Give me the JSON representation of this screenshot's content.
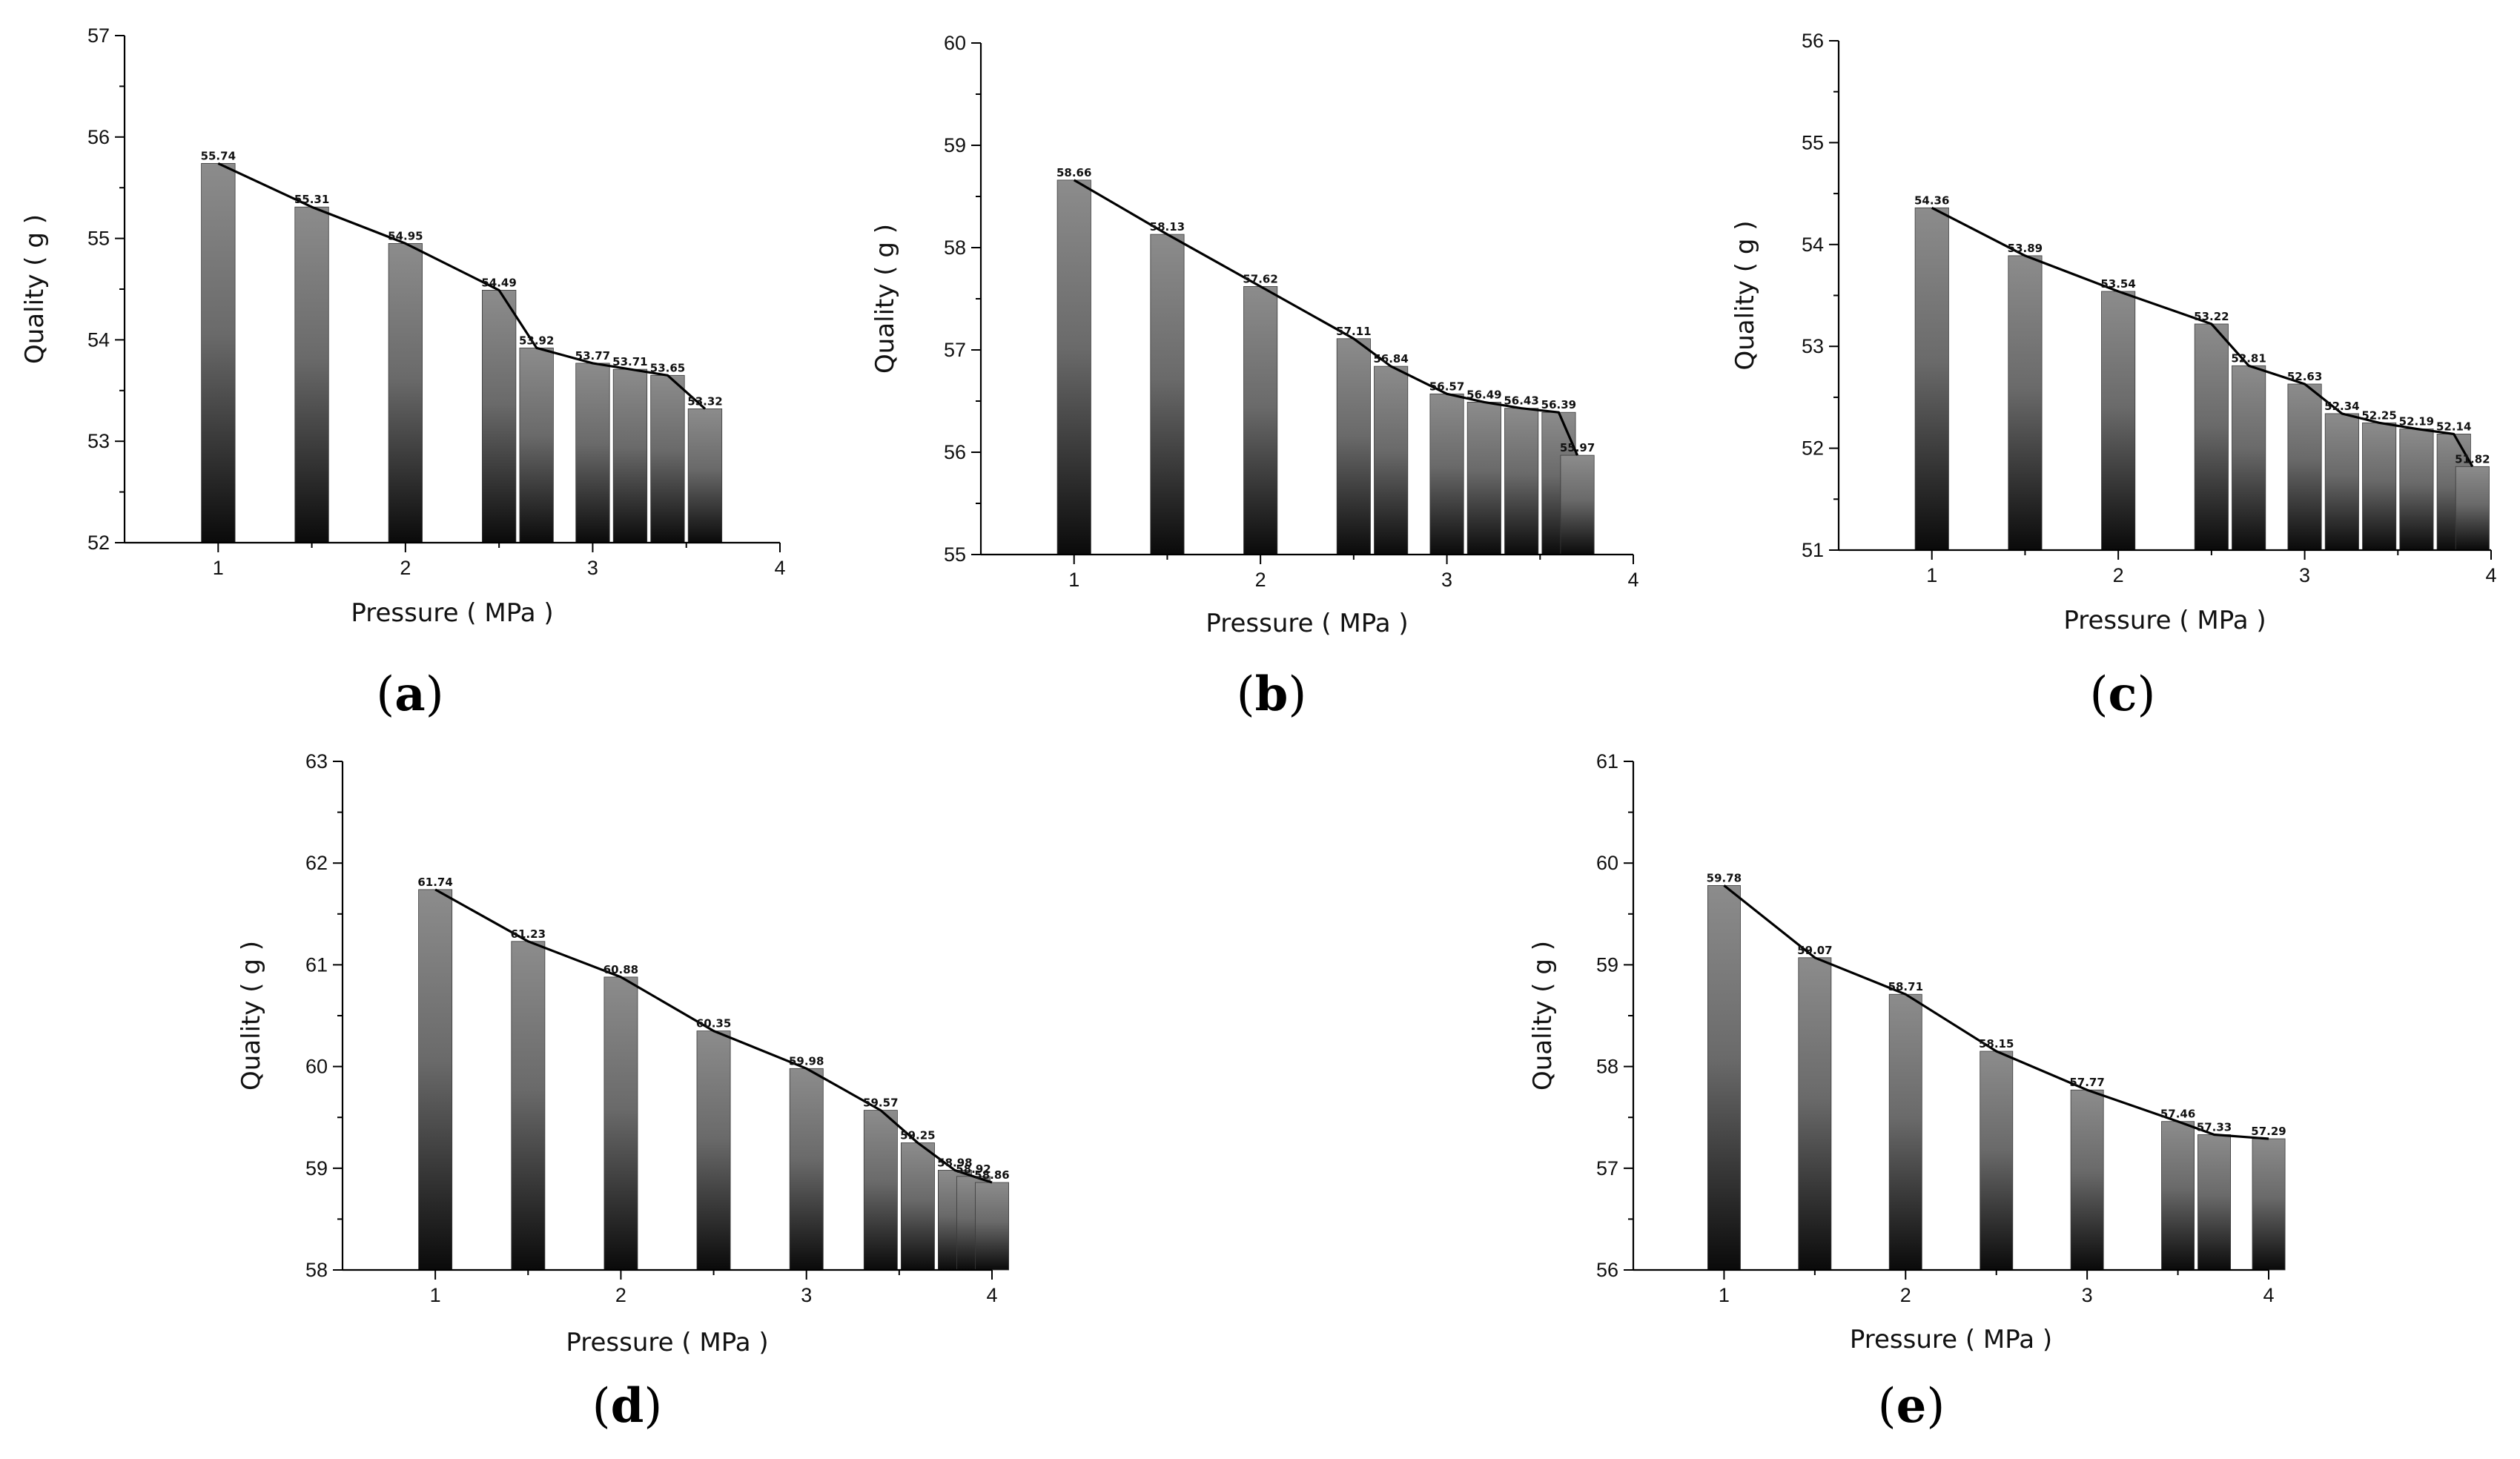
{
  "chart_data": [
    {
      "type": "bar",
      "panel_label": "(a)",
      "panel_letter": "a",
      "xlabel": "Pressure ( MPa )",
      "ylabel": "Quality ( g )",
      "xlim": [
        0.5,
        4
      ],
      "ylim": [
        52,
        57
      ],
      "xticks": [
        "1",
        "2",
        "3",
        "4"
      ],
      "yticks": [
        "52",
        "53",
        "54",
        "55",
        "56",
        "57"
      ],
      "x": [
        1,
        1.5,
        2,
        2.5,
        2.7,
        3,
        3.2,
        3.4,
        3.6
      ],
      "values": [
        55.74,
        55.31,
        54.95,
        54.49,
        53.92,
        53.77,
        53.71,
        53.65,
        53.32
      ],
      "labels": [
        "55.74",
        "55.31",
        "54.95",
        "54.49",
        "53.92",
        "53.77",
        "53.71",
        "53.65",
        "53.32"
      ]
    },
    {
      "type": "bar",
      "panel_label": "(b)",
      "panel_letter": "b",
      "xlabel": "Pressure ( MPa )",
      "ylabel": "Quality ( g )",
      "xlim": [
        0.5,
        4
      ],
      "ylim": [
        55,
        60
      ],
      "xticks": [
        "1",
        "2",
        "3",
        "4"
      ],
      "yticks": [
        "55",
        "56",
        "57",
        "58",
        "59",
        "60"
      ],
      "x": [
        1,
        1.5,
        2,
        2.5,
        2.7,
        3,
        3.2,
        3.4,
        3.6,
        3.7
      ],
      "values": [
        58.66,
        58.13,
        57.62,
        57.11,
        56.84,
        56.57,
        56.49,
        56.43,
        56.39,
        55.97
      ],
      "labels": [
        "58.66",
        "58.13",
        "57.62",
        "57.11",
        "56.84",
        "56.57",
        "56.49",
        "56.43",
        "56.39",
        "55.97"
      ]
    },
    {
      "type": "bar",
      "panel_label": "(c)",
      "panel_letter": "c",
      "xlabel": "Pressure ( MPa )",
      "ylabel": "Quality ( g )",
      "xlim": [
        0.5,
        4
      ],
      "ylim": [
        51,
        56
      ],
      "xticks": [
        "1",
        "2",
        "3",
        "4"
      ],
      "yticks": [
        "51",
        "52",
        "53",
        "54",
        "55",
        "56"
      ],
      "x": [
        1,
        1.5,
        2,
        2.5,
        2.7,
        3,
        3.2,
        3.4,
        3.6,
        3.8,
        3.9
      ],
      "values": [
        54.36,
        53.89,
        53.54,
        53.22,
        52.81,
        52.63,
        52.34,
        52.25,
        52.19,
        52.14,
        51.82
      ],
      "labels": [
        "54.36",
        "53.89",
        "53.54",
        "53.22",
        "52.81",
        "52.63",
        "52.34",
        "52.25",
        "52.19",
        "52.14",
        "51.82"
      ]
    },
    {
      "type": "bar",
      "panel_label": "(d)",
      "panel_letter": "d",
      "xlabel": "Pressure ( MPa )",
      "ylabel": "Quality ( g )",
      "xlim": [
        0.5,
        4
      ],
      "ylim": [
        58,
        63
      ],
      "xticks": [
        "1",
        "2",
        "3",
        "4"
      ],
      "yticks": [
        "58",
        "59",
        "60",
        "61",
        "62",
        "63"
      ],
      "x": [
        1,
        1.5,
        2,
        2.5,
        3,
        3.4,
        3.6,
        3.8,
        3.9,
        4
      ],
      "values": [
        61.74,
        61.23,
        60.88,
        60.35,
        59.98,
        59.57,
        59.25,
        58.98,
        58.92,
        58.86
      ],
      "labels": [
        "61.74",
        "61.23",
        "60.88",
        "60.35",
        "59.98",
        "59.57",
        "59.25",
        "58.98",
        "58.92",
        "58.86"
      ]
    },
    {
      "type": "bar",
      "panel_label": "(e)",
      "panel_letter": "e",
      "xlabel": "Pressure ( MPa )",
      "ylabel": "Quality ( g )",
      "xlim": [
        0.5,
        4
      ],
      "ylim": [
        56,
        61
      ],
      "xticks": [
        "1",
        "2",
        "3",
        "4"
      ],
      "yticks": [
        "56",
        "57",
        "58",
        "59",
        "60",
        "61"
      ],
      "x": [
        1,
        1.5,
        2,
        2.5,
        3,
        3.5,
        3.7,
        4
      ],
      "values": [
        59.78,
        59.07,
        58.71,
        58.15,
        57.77,
        57.46,
        57.33,
        57.29
      ],
      "labels": [
        "59.78",
        "59.07",
        "58.71",
        "58.15",
        "57.77",
        "57.46",
        "57.33",
        "57.29"
      ]
    }
  ]
}
